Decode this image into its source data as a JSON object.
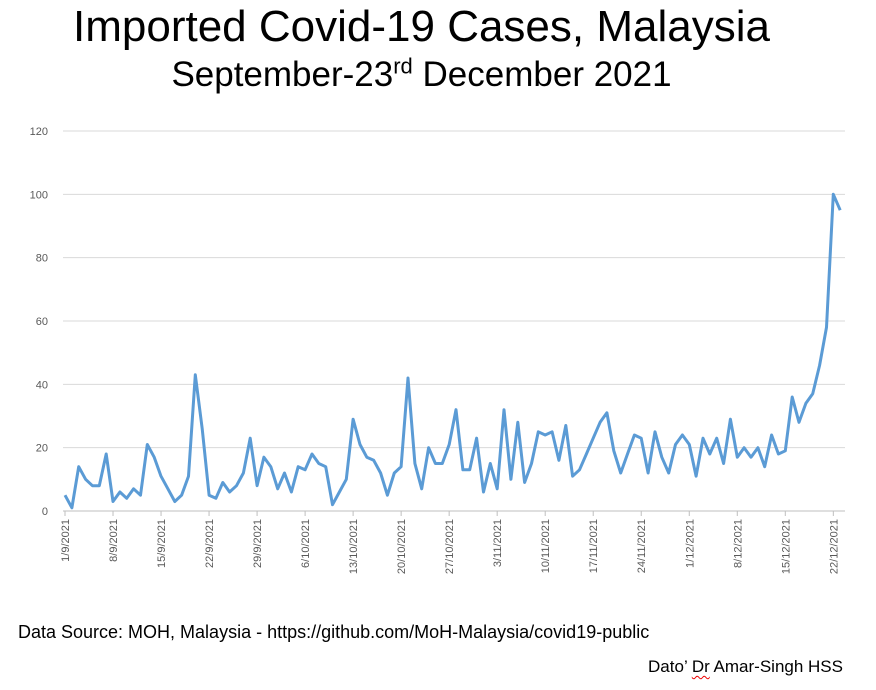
{
  "chart_data": {
    "type": "line",
    "title": "Imported Covid-19 Cases, Malaysia",
    "subtitle": {
      "before": "September-23",
      "sup": "rd",
      "after": " December 2021"
    },
    "xlabel": "",
    "ylabel": "",
    "ylim": [
      0,
      120
    ],
    "yticks": [
      "0",
      "20",
      "40",
      "60",
      "80",
      "100",
      "120"
    ],
    "xticks": [
      "1/9/2021",
      "8/9/2021",
      "15/9/2021",
      "22/9/2021",
      "29/9/2021",
      "6/10/2021",
      "13/10/2021",
      "20/10/2021",
      "27/10/2021",
      "3/11/2021",
      "10/11/2021",
      "17/11/2021",
      "24/11/2021",
      "1/12/2021",
      "8/12/2021",
      "15/12/2021",
      "22/12/2021"
    ],
    "x_start": "1/9/2021",
    "x_end": "23/12/2021",
    "grid": true,
    "line_color": "#5B9BD5",
    "series": [
      {
        "name": "Imported cases",
        "values": [
          5,
          1,
          14,
          10,
          8,
          8,
          18,
          3,
          6,
          4,
          7,
          5,
          21,
          17,
          11,
          7,
          3,
          5,
          11,
          43,
          26,
          5,
          4,
          9,
          6,
          8,
          12,
          23,
          8,
          17,
          14,
          7,
          12,
          6,
          14,
          13,
          18,
          15,
          14,
          2,
          6,
          10,
          29,
          21,
          17,
          16,
          12,
          5,
          12,
          14,
          42,
          15,
          7,
          20,
          15,
          15,
          21,
          32,
          13,
          13,
          23,
          6,
          15,
          7,
          32,
          10,
          28,
          9,
          15,
          25,
          24,
          25,
          16,
          27,
          11,
          13,
          18,
          23,
          28,
          31,
          19,
          12,
          18,
          24,
          23,
          12,
          25,
          17,
          12,
          21,
          24,
          21,
          11,
          23,
          18,
          23,
          15,
          29,
          17,
          20,
          17,
          20,
          14,
          24,
          18,
          19,
          36,
          28,
          34,
          37,
          46,
          58,
          100,
          95
        ]
      }
    ]
  },
  "footer": {
    "source": "Data Source: MOH, Malaysia - https://github.com/MoH-Malaysia/covid19-public",
    "credit_pre": "Dato’ ",
    "credit_dr": "Dr",
    "credit_post": " Amar-Singh HSS"
  }
}
